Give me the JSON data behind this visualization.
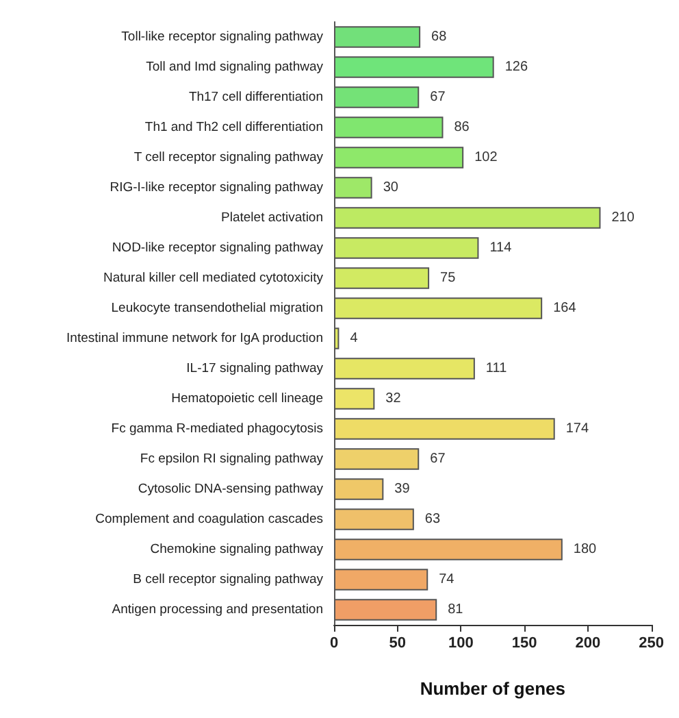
{
  "chart_data": {
    "type": "bar",
    "orientation": "horizontal",
    "xlabel": "Number of genes",
    "categories": [
      "Toll-like receptor signaling pathway",
      "Toll and Imd signaling pathway",
      "Th17 cell differentiation",
      "Th1 and Th2 cell differentiation",
      "T cell receptor signaling pathway",
      "RIG-I-like receptor signaling pathway",
      "Platelet activation",
      "NOD-like receptor signaling pathway",
      "Natural killer cell mediated cytotoxicity",
      "Leukocyte transendothelial migration",
      "Intestinal immune network for IgA production",
      "IL-17 signaling pathway",
      "Hematopoietic cell lineage",
      "Fc gamma R-mediated phagocytosis",
      "Fc epsilon RI signaling pathway",
      "Cytosolic DNA-sensing pathway",
      "Complement and coagulation cascades",
      "Chemokine signaling pathway",
      "B cell receptor signaling pathway",
      "Antigen processing and presentation"
    ],
    "values": [
      68,
      126,
      67,
      86,
      102,
      30,
      210,
      114,
      75,
      164,
      4,
      111,
      32,
      174,
      67,
      39,
      63,
      180,
      74,
      81
    ],
    "colors": [
      "#72e07a",
      "#6fe47a",
      "#74e277",
      "#80e66f",
      "#8ee86a",
      "#9ee868",
      "#bdea62",
      "#c8ea62",
      "#d2ea62",
      "#dbe963",
      "#e2ea64",
      "#e6e664",
      "#ece468",
      "#eedc66",
      "#eed06a",
      "#efc868",
      "#efc06a",
      "#f0b066",
      "#f0a866",
      "#f09e66"
    ],
    "xlim": [
      0,
      250
    ],
    "xticks": [
      0,
      50,
      100,
      150,
      200,
      250
    ],
    "data_labels": true,
    "grid": false
  }
}
